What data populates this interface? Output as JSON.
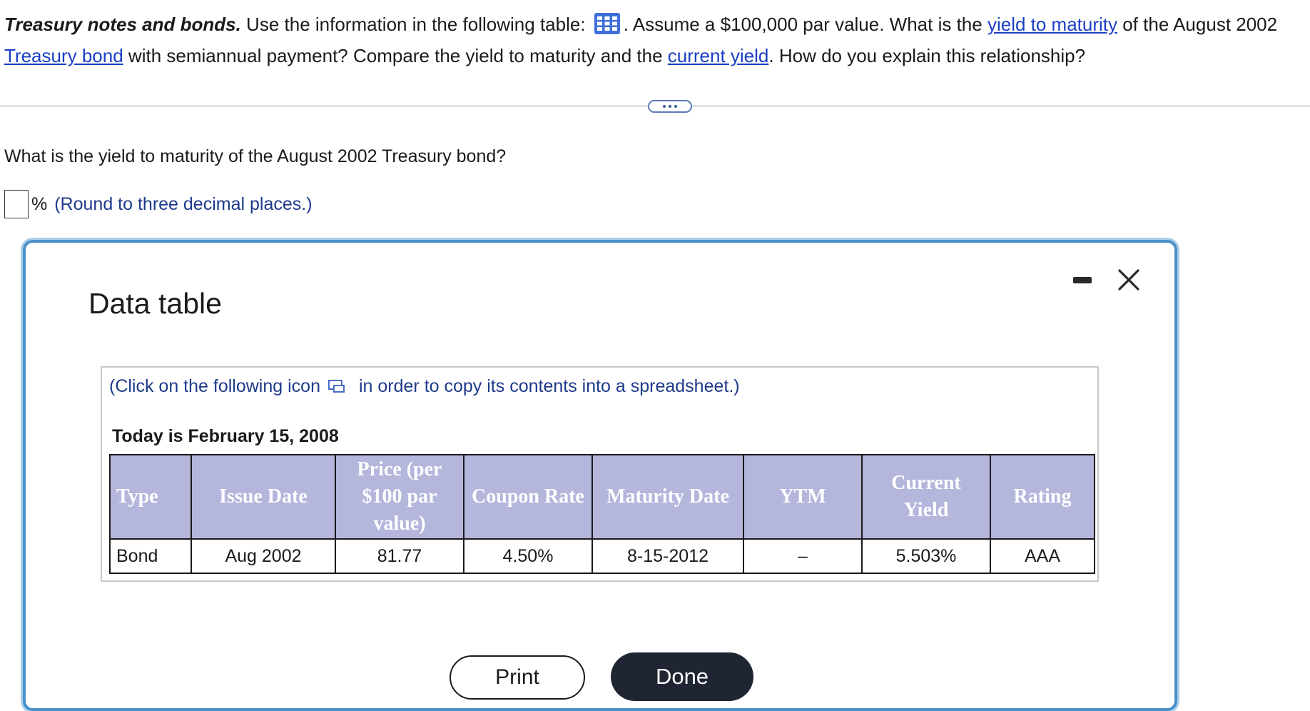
{
  "question": {
    "title": "Treasury notes and bonds.",
    "text_1": " Use the information in the following table: ",
    "text_2": ". Assume a $100,000 par value. What is the ",
    "link_ytm": "yield to maturity",
    "text_3": " of the August 2002 ",
    "link_treasury_bond": "Treasury bond",
    "text_4": " with semiannual payment? Compare the yield to maturity and the ",
    "link_current_yield": "current yield",
    "text_5": ". How do you explain this relationship?"
  },
  "sub_question": "What is the yield to maturity of the August 2002 Treasury bond?",
  "answer": {
    "value": "",
    "unit": "%",
    "hint": "(Round to three decimal places.)"
  },
  "dialog": {
    "title": "Data table",
    "copy_before": "(Click on the following icon",
    "copy_after": "in order to copy its contents into a spreadsheet.)",
    "today": "Today is February 15, 2008",
    "table": {
      "headers": [
        "Type",
        "Issue Date",
        "Price (per $100 par value)",
        "Coupon Rate",
        "Maturity Date",
        "YTM",
        "Current Yield",
        "Rating"
      ],
      "rows": [
        [
          "Bond",
          "Aug 2002",
          "81.77",
          "4.50%",
          "8-15-2012",
          "–",
          "5.503%",
          "AAA"
        ]
      ]
    },
    "print_label": "Print",
    "done_label": "Done"
  },
  "icons": {
    "table_icon": "grid-table-icon",
    "copy_icon": "copy-to-spreadsheet-icon",
    "minimize_icon": "minimize-icon",
    "close_icon": "close-icon"
  },
  "colors": {
    "link": "#1a3fc4",
    "hint": "#1e3a8a",
    "header_bg": "#b4b6dc",
    "dialog_border": "#4a90c8",
    "done_bg": "#1f2533"
  }
}
